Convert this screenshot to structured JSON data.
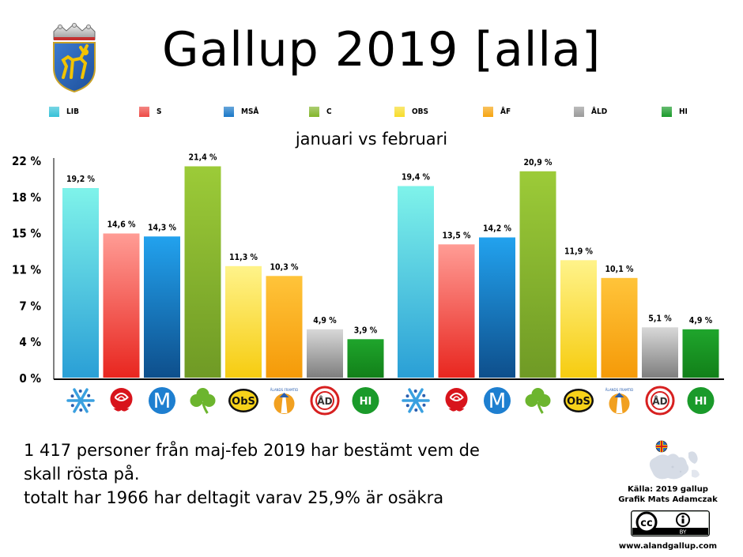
{
  "title": "Gallup 2019 [alla]",
  "subtitle": "januari vs februari",
  "legend": [
    {
      "label": "LIB",
      "color": "#35c1d8"
    },
    {
      "label": "S",
      "color": "#ee4a45"
    },
    {
      "label": "MSÅ",
      "color": "#1a78c8"
    },
    {
      "label": "C",
      "color": "#82b52b"
    },
    {
      "label": "OBS",
      "color": "#f7dc2a"
    },
    {
      "label": "ÅF",
      "color": "#f6a410"
    },
    {
      "label": "ÅLD",
      "color": "#9a9a9a"
    },
    {
      "label": "HI",
      "color": "#1a9a2a"
    }
  ],
  "party_icons": [
    {
      "icon": "snowflake-icon",
      "text": ""
    },
    {
      "icon": "rose-icon",
      "text": ""
    },
    {
      "icon": "m-logo-icon",
      "text": "M"
    },
    {
      "icon": "clover-icon",
      "text": ""
    },
    {
      "icon": "obs-logo-icon",
      "text": "ObS"
    },
    {
      "icon": "aland-framat-icon",
      "text": "ÅLANDS FRAMTID"
    },
    {
      "icon": "ald-logo-icon",
      "text": "ÅD"
    },
    {
      "icon": "hi-logo-icon",
      "text": "HI"
    }
  ],
  "chart_data": {
    "type": "bar",
    "title": "Gallup 2019 [alla]",
    "subtitle": "januari vs februari",
    "y_ticks": [
      "22 %",
      "18 %",
      "15 %",
      "11 %",
      "7 %",
      "4 %",
      "0 %"
    ],
    "ylim": [
      0,
      22
    ],
    "categories": [
      "LIB",
      "S",
      "MSÅ",
      "C",
      "OBS",
      "ÅF",
      "ÅLD",
      "HI"
    ],
    "series": [
      {
        "values": [
          19.2,
          14.6,
          14.3,
          21.4,
          11.3,
          10.3,
          4.9,
          3.9
        ],
        "labels": [
          "19,2 %",
          "14,6 %",
          "14,3 %",
          "21,4 %",
          "11,3 %",
          "10,3 %",
          "4,9 %",
          "3,9 %"
        ]
      },
      {
        "values": [
          19.4,
          13.5,
          14.2,
          20.9,
          11.9,
          10.1,
          5.1,
          4.9
        ],
        "labels": [
          "19,4 %",
          "13,5 %",
          "14,2 %",
          "20,9 %",
          "11,9 %",
          "10,1 %",
          "5,1 %",
          "4,9 %"
        ]
      }
    ],
    "colors": [
      {
        "top": "#7ff3ea",
        "bottom": "#2a9fd6"
      },
      {
        "top": "#ff9c95",
        "bottom": "#e8261f"
      },
      {
        "top": "#22a2ee",
        "bottom": "#0e4f8c"
      },
      {
        "top": "#9ccb38",
        "bottom": "#6f9a25"
      },
      {
        "top": "#fff38a",
        "bottom": "#f6cc10"
      },
      {
        "top": "#ffc43a",
        "bottom": "#f59a08"
      },
      {
        "top": "#d8d8d8",
        "bottom": "#7e7e7e"
      },
      {
        "top": "#1fa52c",
        "bottom": "#128019"
      }
    ],
    "grid": false
  },
  "note": {
    "line1": "1 417 personer från maj-feb 2019 har bestämt vem de",
    "line2": "skall rösta på.",
    "line3": "totalt har 1966 har deltagit varav 25,9% är osäkra"
  },
  "source": {
    "line1": "Källa: 2019 gallup",
    "line2": "Grafik Mats Adamczak",
    "cc_text": "cc",
    "cc_by": "BY",
    "url": "www.alandgallup.com"
  }
}
